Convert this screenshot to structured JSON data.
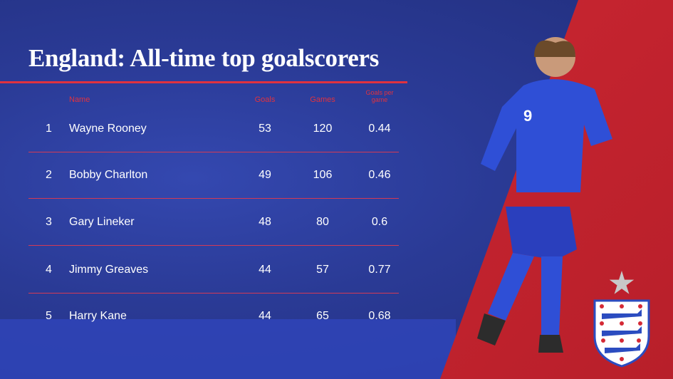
{
  "title": "England: All-time top goalscorers",
  "headers": {
    "name": "Name",
    "goals": "Goals",
    "games": "Games",
    "gpg": "Goals per game"
  },
  "rows": [
    {
      "rank": "1",
      "name": "Wayne Rooney",
      "goals": "53",
      "games": "120",
      "gpg": "0.44"
    },
    {
      "rank": "2",
      "name": "Bobby Charlton",
      "goals": "49",
      "games": "106",
      "gpg": "0.46"
    },
    {
      "rank": "3",
      "name": "Gary Lineker",
      "goals": "48",
      "games": "80",
      "gpg": "0.6"
    },
    {
      "rank": "4",
      "name": "Jimmy Greaves",
      "goals": "44",
      "games": "57",
      "gpg": "0.77"
    },
    {
      "rank": "5",
      "name": "Harry Kane",
      "goals": "44",
      "games": "65",
      "gpg": "0.68"
    }
  ],
  "colors": {
    "blue": "#2b3a92",
    "red": "#d42a36",
    "accent": "#e0323f"
  },
  "icons": {
    "star": "star-icon",
    "crest": "three-lions-crest-icon"
  }
}
